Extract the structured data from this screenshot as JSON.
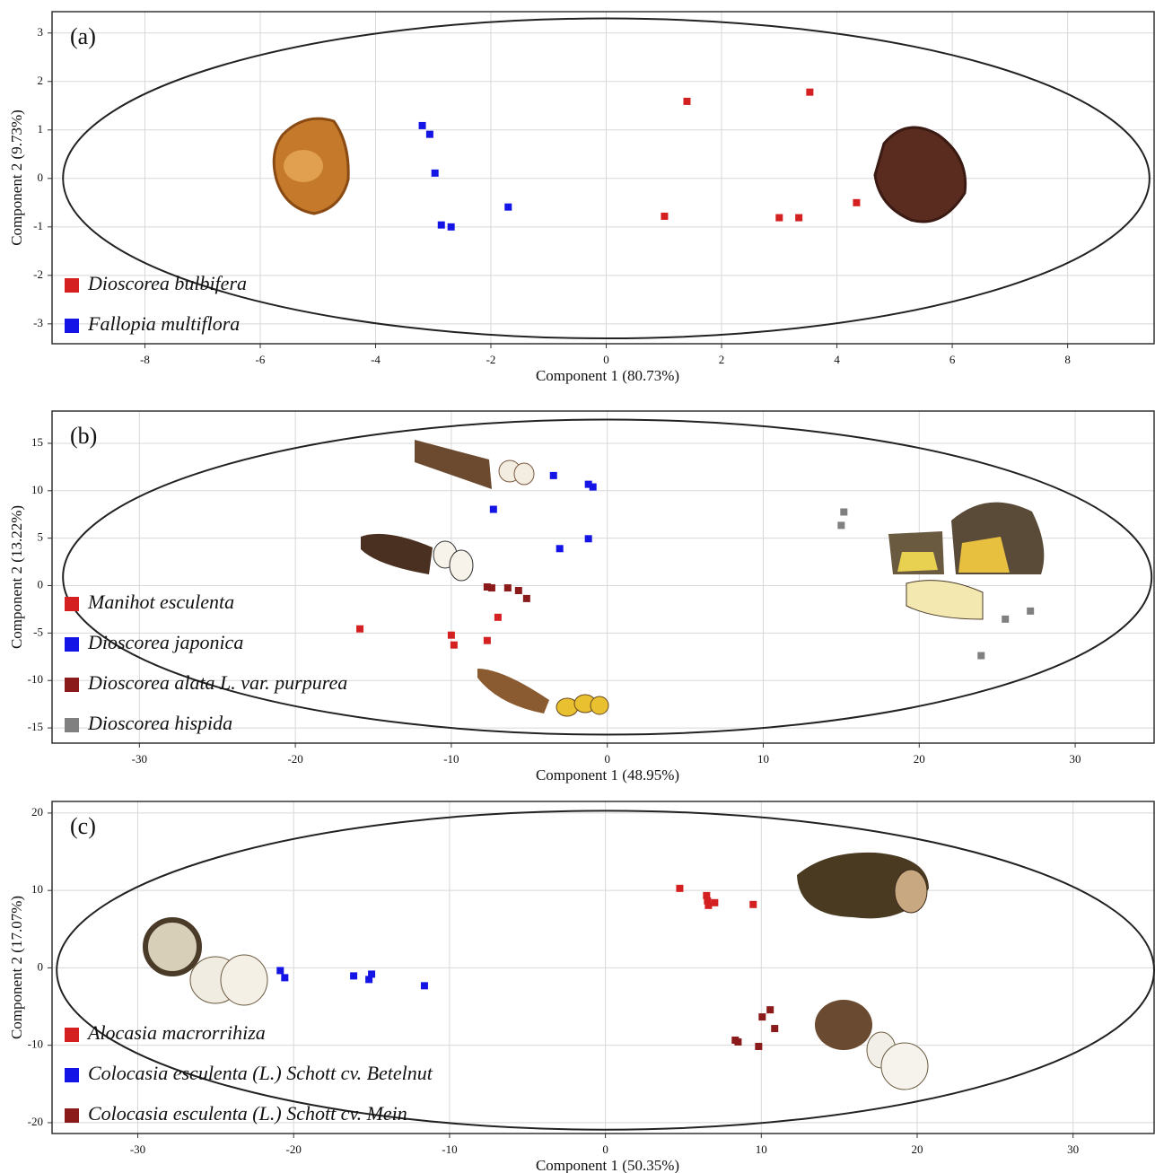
{
  "chart_data": [
    {
      "type": "scatter",
      "panel_label": "(a)",
      "xlabel": "Component 1 (80.73%)",
      "ylabel": "Component 2 (9.73%)",
      "xlim": [
        -9.61,
        9.5
      ],
      "ylim": [
        -3.41,
        3.44
      ],
      "xticks": [
        -8,
        -6,
        -4,
        -2,
        0,
        2,
        4,
        6,
        8
      ],
      "yticks": [
        3,
        2,
        1,
        0,
        -1,
        -2,
        -3
      ],
      "grid": true,
      "legend": "lower left",
      "ellipse": {
        "center": [
          0,
          0
        ],
        "radii": [
          9.42,
          3.3
        ]
      },
      "series": [
        {
          "name": "Dioscorea bulbifera",
          "color": "#d42020",
          "x": [
            1.4,
            3.53,
            1.01,
            3.0,
            3.34,
            4.34
          ],
          "values": [
            1.59,
            1.78,
            -0.78,
            -0.81,
            -0.81,
            -0.5
          ]
        },
        {
          "name": "Fallopia multiflora",
          "color": "#1414e6",
          "x": [
            -3.19,
            -3.06,
            -2.97,
            -1.7,
            -2.86,
            -2.69
          ],
          "values": [
            1.09,
            0.91,
            0.11,
            -0.59,
            -0.96,
            -1.0
          ]
        }
      ]
    },
    {
      "type": "scatter",
      "panel_label": "(b)",
      "xlabel": "Component 1 (48.95%)",
      "ylabel": "Component 2 (13.22%)",
      "xlim": [
        -35.6,
        35.06
      ],
      "ylim": [
        -16.6,
        18.4
      ],
      "xticks": [
        -30,
        -20,
        -10,
        0,
        10,
        20,
        30
      ],
      "yticks": [
        15,
        10,
        5,
        0,
        -5,
        -10,
        -15
      ],
      "grid": true,
      "legend": "lower left",
      "ellipse": {
        "center": [
          0,
          0.9
        ],
        "radii": [
          34.9,
          16.6
        ]
      },
      "series": [
        {
          "name": "Manihot esculenta",
          "color": "#d42020",
          "x": [
            -15.86,
            -10.0,
            -9.83,
            -7.7,
            -7.01
          ],
          "values": [
            -4.56,
            -5.22,
            -6.26,
            -5.79,
            -3.34
          ]
        },
        {
          "name": "Dioscorea japonica",
          "color": "#1414e6",
          "x": [
            -3.45,
            -1.21,
            -0.92,
            -7.3,
            -3.05,
            -1.21
          ],
          "values": [
            11.6,
            10.68,
            10.4,
            8.04,
            3.9,
            4.94
          ]
        },
        {
          "name": "Dioscorea alata L. var. purpurea",
          "color": "#8b1a1a",
          "x": [
            -7.7,
            -7.41,
            -6.38,
            -5.69,
            -5.17
          ],
          "values": [
            -0.14,
            -0.24,
            -0.24,
            -0.52,
            -1.36
          ]
        },
        {
          "name": "Dioscorea hispida",
          "color": "#808080",
          "x": [
            15.17,
            15.0,
            25.52,
            27.13,
            23.97
          ],
          "values": [
            7.76,
            6.35,
            -3.53,
            -2.68,
            -7.38
          ]
        }
      ]
    },
    {
      "type": "scatter",
      "panel_label": "(c)",
      "xlabel": "Component 1 (50.35%)",
      "ylabel": "Component 2 (17.07%)",
      "xlim": [
        -35.5,
        35.2
      ],
      "ylim": [
        -21.4,
        21.5
      ],
      "xticks": [
        -30,
        -20,
        -10,
        0,
        10,
        20,
        30
      ],
      "yticks": [
        20,
        10,
        0,
        -10,
        -20
      ],
      "grid": true,
      "legend": "lower left",
      "ellipse": {
        "center": [
          0,
          -0.3
        ],
        "radii": [
          35.2,
          20.6
        ]
      },
      "series": [
        {
          "name": "Alocasia macrorrihiza",
          "color": "#d42020",
          "x": [
            4.77,
            6.49,
            6.61,
            7.01,
            9.48,
            6.55
          ],
          "values": [
            10.27,
            9.34,
            8.07,
            8.42,
            8.19,
            8.65
          ]
        },
        {
          "name": "Colocasia esculenta (L.) Schott cv. Betelnut",
          "color": "#1414e6",
          "x": [
            -20.86,
            -20.57,
            -16.15,
            -15.17,
            -15.0,
            -11.61
          ],
          "values": [
            -0.35,
            -1.27,
            -1.04,
            -1.5,
            -0.81,
            -2.31
          ]
        },
        {
          "name": "Colocasia esculenta (L.) Schott cv. Mein",
          "color": "#8b1a1a",
          "x": [
            8.33,
            8.51,
            10.06,
            10.57,
            10.86,
            9.83
          ],
          "values": [
            -9.34,
            -9.57,
            -6.34,
            -5.42,
            -7.84,
            -10.15
          ]
        }
      ]
    }
  ]
}
